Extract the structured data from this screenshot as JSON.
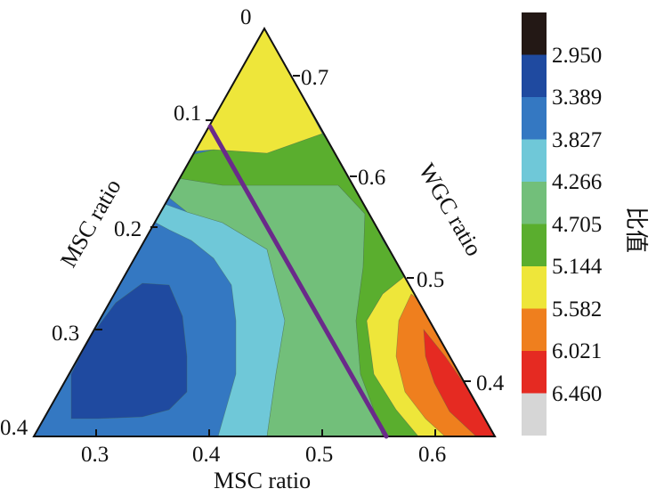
{
  "chart_data": {
    "type": "ternary-contour",
    "axes": {
      "left": {
        "label": "MSC ratio",
        "ticks": [
          "0",
          "0.1",
          "0.2",
          "0.3",
          "0.4"
        ]
      },
      "right": {
        "label": "WGC ratio",
        "ticks": [
          "0.7",
          "0.6",
          "0.5",
          "0.4"
        ]
      },
      "bottom": {
        "label": "MSC ratio",
        "ticks": [
          "0.3",
          "0.4",
          "0.5",
          "0.6"
        ]
      }
    },
    "colorbar": {
      "label": "比值",
      "levels": [
        "2.950",
        "3.389",
        "3.827",
        "4.266",
        "4.705",
        "5.144",
        "5.582",
        "6.021",
        "6.460"
      ],
      "colors": [
        "#231815",
        "#1f4aa0",
        "#3478c2",
        "#6fc8d8",
        "#72bf7a",
        "#5aae2e",
        "#eee63a",
        "#ef7f1e",
        "#e52a22",
        "#d6d6d6"
      ]
    },
    "contour_colors": {
      "level_2": "#1f4aa0",
      "level_3": "#3478c2",
      "level_4": "#6fc8d8",
      "level_5": "#72bf7a",
      "level_6": "#5aae2e",
      "level_7": "#eee63a",
      "level_8": "#ef7f1e",
      "level_9": "#e52a22"
    },
    "reference_line": {
      "color": "#6a2a8a",
      "from": {
        "MSC": 0.1,
        "side": "left-edge"
      },
      "to": {
        "MSC": 0.56,
        "side": "bottom-edge"
      }
    }
  }
}
